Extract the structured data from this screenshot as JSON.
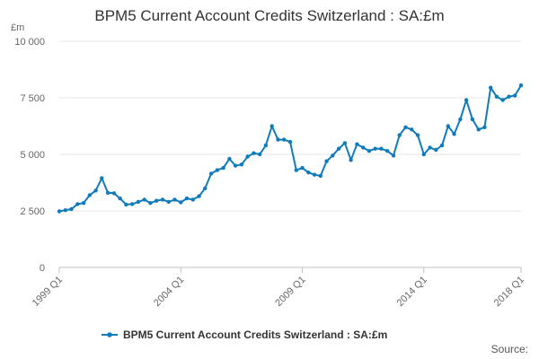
{
  "title": "BPM5 Current Account Credits Switzerland : SA:£m",
  "unit_label": "£m",
  "source_label": "Source:",
  "colors": {
    "series": "#0f7bbd",
    "grid": "#e6e6e6",
    "axis": "#c0c0c0"
  },
  "chart_data": {
    "type": "line",
    "title": "BPM5 Current Account Credits Switzerland : SA:£m",
    "xlabel": "",
    "ylabel": "£m",
    "ylim": [
      0,
      10000
    ],
    "yticks": [
      0,
      2500,
      5000,
      7500,
      10000
    ],
    "ytick_labels": [
      "0",
      "2 500",
      "5 000",
      "7 500",
      "10 000"
    ],
    "xtick_labels": [
      "1999 Q1",
      "2004 Q1",
      "2009 Q1",
      "2014 Q1",
      "2018 Q1"
    ],
    "xtick_index": [
      0,
      20,
      40,
      60,
      76
    ],
    "grid": true,
    "legend": "bottom",
    "categories": [
      "1999 Q1",
      "1999 Q2",
      "1999 Q3",
      "1999 Q4",
      "2000 Q1",
      "2000 Q2",
      "2000 Q3",
      "2000 Q4",
      "2001 Q1",
      "2001 Q2",
      "2001 Q3",
      "2001 Q4",
      "2002 Q1",
      "2002 Q2",
      "2002 Q3",
      "2002 Q4",
      "2003 Q1",
      "2003 Q2",
      "2003 Q3",
      "2003 Q4",
      "2004 Q1",
      "2004 Q2",
      "2004 Q3",
      "2004 Q4",
      "2005 Q1",
      "2005 Q2",
      "2005 Q3",
      "2005 Q4",
      "2006 Q1",
      "2006 Q2",
      "2006 Q3",
      "2006 Q4",
      "2007 Q1",
      "2007 Q2",
      "2007 Q3",
      "2007 Q4",
      "2008 Q1",
      "2008 Q2",
      "2008 Q3",
      "2008 Q4",
      "2009 Q1",
      "2009 Q2",
      "2009 Q3",
      "2009 Q4",
      "2010 Q1",
      "2010 Q2",
      "2010 Q3",
      "2010 Q4",
      "2011 Q1",
      "2011 Q2",
      "2011 Q3",
      "2011 Q4",
      "2012 Q1",
      "2012 Q2",
      "2012 Q3",
      "2012 Q4",
      "2013 Q1",
      "2013 Q2",
      "2013 Q3",
      "2013 Q4",
      "2014 Q1",
      "2014 Q2",
      "2014 Q3",
      "2014 Q4",
      "2015 Q1",
      "2015 Q2",
      "2015 Q3",
      "2015 Q4",
      "2016 Q1",
      "2016 Q2",
      "2016 Q3",
      "2016 Q4",
      "2017 Q1",
      "2017 Q2",
      "2017 Q3",
      "2017 Q4",
      "2018 Q1"
    ],
    "series": [
      {
        "name": "BPM5 Current Account Credits Switzerland : SA:£m",
        "values": [
          2480,
          2530,
          2580,
          2800,
          2850,
          3200,
          3400,
          3950,
          3300,
          3280,
          3050,
          2780,
          2800,
          2900,
          3000,
          2850,
          2950,
          3000,
          2900,
          3000,
          2880,
          3050,
          3000,
          3150,
          3500,
          4150,
          4300,
          4400,
          4800,
          4500,
          4550,
          4900,
          5050,
          5000,
          5400,
          6250,
          5650,
          5650,
          5550,
          4300,
          4400,
          4200,
          4100,
          4050,
          4700,
          4950,
          5250,
          5500,
          4750,
          5450,
          5300,
          5150,
          5250,
          5250,
          5150,
          4950,
          5850,
          6200,
          6100,
          5850,
          5000,
          5300,
          5200,
          5400,
          6250,
          5900,
          6550,
          7400,
          6550,
          6100,
          6200,
          7950,
          7550,
          7400,
          7550,
          7600,
          8050
        ]
      }
    ]
  }
}
